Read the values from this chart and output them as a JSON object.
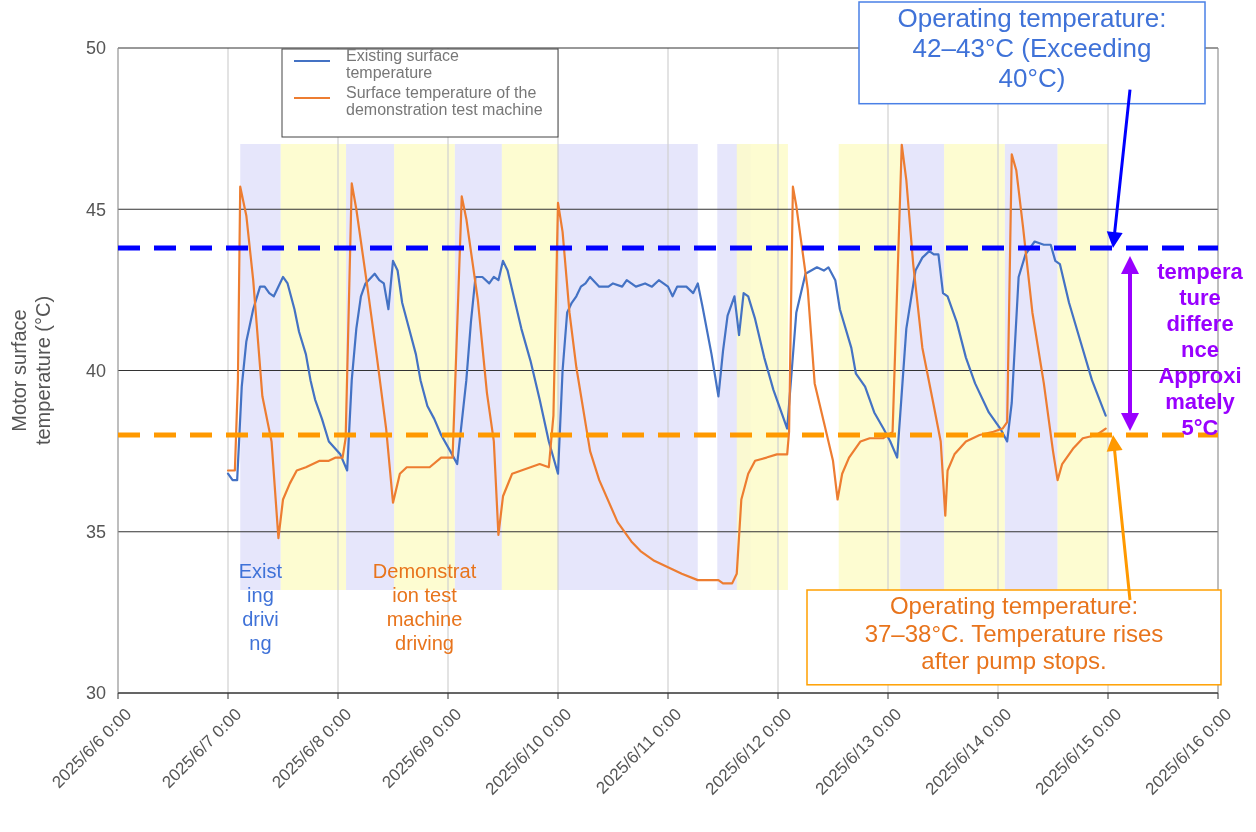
{
  "chart_data": {
    "type": "line",
    "ylabel": "Motor surface temperature (°C)",
    "xlim": [
      "2025-06-06T00:00",
      "2025-06-16T00:00"
    ],
    "xticks": [
      {
        "value": "2025-06-06T00:00",
        "label": "2025/6/6 0:00"
      },
      {
        "value": "2025-06-07T00:00",
        "label": "2025/6/7 0:00"
      },
      {
        "value": "2025-06-08T00:00",
        "label": "2025/6/8 0:00"
      },
      {
        "value": "2025-06-09T00:00",
        "label": "2025/6/9 0:00"
      },
      {
        "value": "2025-06-10T00:00",
        "label": "2025/6/10 0:00"
      },
      {
        "value": "2025-06-11T00:00",
        "label": "2025/6/11 0:00"
      },
      {
        "value": "2025-06-12T00:00",
        "label": "2025/6/12 0:00"
      },
      {
        "value": "2025-06-13T00:00",
        "label": "2025/6/13 0:00"
      },
      {
        "value": "2025-06-14T00:00",
        "label": "2025/6/14 0:00"
      },
      {
        "value": "2025-06-15T00:00",
        "label": "2025/6/15 0:00"
      },
      {
        "value": "2025-06-16T00:00",
        "label": "2025/6/16 0:00"
      }
    ],
    "ylim": [
      30,
      50
    ],
    "yticks": [
      30,
      35,
      40,
      45,
      50
    ],
    "grid": true,
    "legend": "top left",
    "series": [
      {
        "name": "Existing surface temperature",
        "color": "#4472c4",
        "x": [
          "2025-06-07T00:00",
          "2025-06-07T01:00",
          "2025-06-07T02:00",
          "2025-06-07T03:00",
          "2025-06-07T04:00",
          "2025-06-07T05:30",
          "2025-06-07T07:00",
          "2025-06-07T08:00",
          "2025-06-07T09:00",
          "2025-06-07T10:00",
          "2025-06-07T12:00",
          "2025-06-07T13:00",
          "2025-06-07T14:30",
          "2025-06-07T15:30",
          "2025-06-07T17:00",
          "2025-06-07T18:00",
          "2025-06-07T19:00",
          "2025-06-07T20:30",
          "2025-06-07T22:00",
          "2025-06-08T00:30",
          "2025-06-08T02:00",
          "2025-06-08T03:00",
          "2025-06-08T04:00",
          "2025-06-08T05:00",
          "2025-06-08T06:00",
          "2025-06-08T08:00",
          "2025-06-08T09:00",
          "2025-06-08T10:00",
          "2025-06-08T11:00",
          "2025-06-08T12:00",
          "2025-06-08T13:00",
          "2025-06-08T14:00",
          "2025-06-08T15:30",
          "2025-06-08T17:00",
          "2025-06-08T18:00",
          "2025-06-08T19:30",
          "2025-06-08T21:00",
          "2025-06-08T22:30",
          "2025-06-09T00:30",
          "2025-06-09T02:00",
          "2025-06-09T04:00",
          "2025-06-09T05:00",
          "2025-06-09T06:00",
          "2025-06-09T07:30",
          "2025-06-09T09:00",
          "2025-06-09T10:00",
          "2025-06-09T11:00",
          "2025-06-09T12:00",
          "2025-06-09T13:00",
          "2025-06-09T14:30",
          "2025-06-09T16:00",
          "2025-06-09T18:00",
          "2025-06-09T20:00",
          "2025-06-09T22:00",
          "2025-06-10T00:00",
          "2025-06-10T01:00",
          "2025-06-10T02:00",
          "2025-06-10T03:00",
          "2025-06-10T04:00",
          "2025-06-10T05:00",
          "2025-06-10T06:00",
          "2025-06-10T07:00",
          "2025-06-10T09:00",
          "2025-06-10T11:00",
          "2025-06-10T12:00",
          "2025-06-10T14:00",
          "2025-06-10T15:00",
          "2025-06-10T17:00",
          "2025-06-10T19:00",
          "2025-06-10T20:30",
          "2025-06-10T22:00",
          "2025-06-11T00:00",
          "2025-06-11T01:00",
          "2025-06-11T02:00",
          "2025-06-11T04:00",
          "2025-06-11T05:30",
          "2025-06-11T06:30",
          "2025-06-11T07:30",
          "2025-06-11T09:30",
          "2025-06-11T11:00",
          "2025-06-11T12:00",
          "2025-06-11T13:00",
          "2025-06-11T14:30",
          "2025-06-11T15:30",
          "2025-06-11T16:30",
          "2025-06-11T17:30",
          "2025-06-11T19:00",
          "2025-06-11T21:00",
          "2025-06-11T23:00",
          "2025-06-12T01:00",
          "2025-06-12T02:00",
          "2025-06-12T03:00",
          "2025-06-12T04:00",
          "2025-06-12T06:00",
          "2025-06-12T08:30",
          "2025-06-12T10:00",
          "2025-06-12T11:00",
          "2025-06-12T12:30",
          "2025-06-12T13:30",
          "2025-06-12T16:00",
          "2025-06-12T17:00",
          "2025-06-12T19:00",
          "2025-06-12T21:00",
          "2025-06-12T23:00",
          "2025-06-13T00:30",
          "2025-06-13T02:00",
          "2025-06-13T04:00",
          "2025-06-13T06:00",
          "2025-06-13T07:30",
          "2025-06-13T09:00",
          "2025-06-13T10:00",
          "2025-06-13T11:00",
          "2025-06-13T12:00",
          "2025-06-13T13:00",
          "2025-06-13T15:00",
          "2025-06-13T17:00",
          "2025-06-13T19:00",
          "2025-06-13T22:00",
          "2025-06-14T00:30",
          "2025-06-14T02:00",
          "2025-06-14T03:00",
          "2025-06-14T04:30",
          "2025-06-14T06:00",
          "2025-06-14T08:00",
          "2025-06-14T10:00",
          "2025-06-14T11:30",
          "2025-06-14T12:30",
          "2025-06-14T13:30",
          "2025-06-14T15:30",
          "2025-06-14T18:00",
          "2025-06-14T20:30",
          "2025-06-14T23:30"
        ],
        "values": [
          36.8,
          36.6,
          36.6,
          39.5,
          40.9,
          41.9,
          42.6,
          42.6,
          42.4,
          42.3,
          42.9,
          42.7,
          41.9,
          41.2,
          40.5,
          39.7,
          39.1,
          38.5,
          37.8,
          37.4,
          36.9,
          39.7,
          41.3,
          42.3,
          42.7,
          43.0,
          42.8,
          42.7,
          41.9,
          43.4,
          43.1,
          42.1,
          41.3,
          40.5,
          39.7,
          38.9,
          38.5,
          38.0,
          37.5,
          37.1,
          39.7,
          41.5,
          42.9,
          42.9,
          42.7,
          42.9,
          42.8,
          43.4,
          43.1,
          42.2,
          41.3,
          40.3,
          39.1,
          37.8,
          36.8,
          40.0,
          41.8,
          42.1,
          42.3,
          42.6,
          42.7,
          42.9,
          42.6,
          42.6,
          42.7,
          42.6,
          42.8,
          42.6,
          42.7,
          42.6,
          42.8,
          42.6,
          42.3,
          42.6,
          42.6,
          42.4,
          42.7,
          42.0,
          40.5,
          39.2,
          40.6,
          41.7,
          42.3,
          41.1,
          42.4,
          42.3,
          41.6,
          40.4,
          39.4,
          38.6,
          38.2,
          40.0,
          41.8,
          43.0,
          43.2,
          43.1,
          43.2,
          42.8,
          41.9,
          40.7,
          39.9,
          39.5,
          38.7,
          38.2,
          37.8,
          37.3,
          41.3,
          43.1,
          43.5,
          43.7,
          43.6,
          43.6,
          42.4,
          42.3,
          41.5,
          40.4,
          39.6,
          38.7,
          38.2,
          37.8,
          39.0,
          42.9,
          43.6,
          44.0,
          43.9,
          43.9,
          43.4,
          43.3,
          42.1,
          40.9,
          39.7,
          38.6
        ]
      },
      {
        "name": "Surface temperature of the demonstration test machine",
        "color": "#ed7d31",
        "x": [
          "2025-06-07T00:00",
          "2025-06-07T01:30",
          "2025-06-07T02:10",
          "2025-06-07T02:40",
          "2025-06-07T04:00",
          "2025-06-07T05:30",
          "2025-06-07T07:30",
          "2025-06-07T09:30",
          "2025-06-07T11:00",
          "2025-06-07T12:00",
          "2025-06-07T13:30",
          "2025-06-07T15:00",
          "2025-06-07T17:00",
          "2025-06-07T20:00",
          "2025-06-07T22:00",
          "2025-06-07T23:30",
          "2025-06-08T01:00",
          "2025-06-08T01:40",
          "2025-06-08T03:00",
          "2025-06-08T04:00",
          "2025-06-08T06:30",
          "2025-06-08T08:30",
          "2025-06-08T10:30",
          "2025-06-08T12:00",
          "2025-06-08T13:30",
          "2025-06-08T15:00",
          "2025-06-08T17:00",
          "2025-06-08T20:00",
          "2025-06-08T22:30",
          "2025-06-09T00:30",
          "2025-06-09T01:00",
          "2025-06-09T03:00",
          "2025-06-09T04:00",
          "2025-06-09T06:30",
          "2025-06-09T08:30",
          "2025-06-09T10:00",
          "2025-06-09T11:00",
          "2025-06-09T12:00",
          "2025-06-09T14:00",
          "2025-06-09T16:00",
          "2025-06-09T20:00",
          "2025-06-09T22:00",
          "2025-06-09T23:00",
          "2025-06-10T00:00",
          "2025-06-10T01:00",
          "2025-06-10T02:30",
          "2025-06-10T04:00",
          "2025-06-10T07:00",
          "2025-06-10T09:00",
          "2025-06-10T13:00",
          "2025-06-10T16:00",
          "2025-06-10T18:00",
          "2025-06-10T21:00",
          "2025-06-11T00:00",
          "2025-06-11T03:00",
          "2025-06-11T06:30",
          "2025-06-11T11:00",
          "2025-06-11T12:00",
          "2025-06-11T14:00",
          "2025-06-11T15:00",
          "2025-06-11T16:00",
          "2025-06-11T17:30",
          "2025-06-11T19:00",
          "2025-06-11T21:30",
          "2025-06-11T23:45",
          "2025-06-12T02:00",
          "2025-06-12T02:25",
          "2025-06-12T03:15",
          "2025-06-12T04:00",
          "2025-06-12T06:30",
          "2025-06-12T08:00",
          "2025-06-12T10:00",
          "2025-06-12T12:00",
          "2025-06-12T13:00",
          "2025-06-12T14:00",
          "2025-06-12T15:30",
          "2025-06-12T18:00",
          "2025-06-12T20:00",
          "2025-06-12T23:00",
          "2025-06-13T01:00",
          "2025-06-13T03:00",
          "2025-06-13T04:00",
          "2025-06-13T05:30",
          "2025-06-13T07:30",
          "2025-06-13T10:00",
          "2025-06-13T11:30",
          "2025-06-13T12:30",
          "2025-06-13T13:00",
          "2025-06-13T14:30",
          "2025-06-13T17:00",
          "2025-06-13T20:00",
          "2025-06-13T23:00",
          "2025-06-14T01:00",
          "2025-06-14T02:00",
          "2025-06-14T03:00",
          "2025-06-14T04:00",
          "2025-06-14T05:30",
          "2025-06-14T07:30",
          "2025-06-14T10:00",
          "2025-06-14T12:00",
          "2025-06-14T13:00",
          "2025-06-14T14:00",
          "2025-06-14T16:30",
          "2025-06-14T18:30",
          "2025-06-14T21:30",
          "2025-06-14T23:30"
        ],
        "values": [
          36.9,
          36.9,
          39.7,
          45.7,
          44.8,
          42.8,
          39.2,
          37.8,
          34.8,
          36.0,
          36.5,
          36.9,
          37.0,
          37.2,
          37.2,
          37.3,
          37.3,
          37.9,
          45.8,
          45.0,
          42.5,
          40.4,
          38.2,
          35.9,
          36.8,
          37.0,
          37.0,
          37.0,
          37.3,
          37.3,
          37.3,
          45.4,
          44.7,
          42.2,
          39.3,
          37.8,
          34.9,
          36.1,
          36.8,
          36.9,
          37.1,
          37.0,
          38.6,
          45.2,
          44.3,
          41.8,
          40.1,
          37.5,
          36.6,
          35.3,
          34.7,
          34.4,
          34.1,
          33.9,
          33.7,
          33.5,
          33.5,
          33.4,
          33.4,
          33.7,
          36.0,
          36.8,
          37.2,
          37.3,
          37.4,
          37.4,
          38.1,
          45.7,
          45.1,
          42.5,
          39.6,
          38.4,
          37.2,
          36.0,
          36.8,
          37.3,
          37.8,
          37.9,
          37.9,
          38.1,
          47.0,
          45.9,
          43.3,
          40.7,
          38.9,
          37.8,
          35.5,
          36.9,
          37.4,
          37.8,
          38.0,
          38.1,
          38.2,
          38.4,
          46.7,
          46.2,
          44.4,
          41.8,
          39.6,
          37.5,
          36.6,
          37.1,
          37.6,
          37.9,
          38.0,
          38.2
        ]
      }
    ],
    "bands": [
      {
        "axis": "x",
        "from": "2025-06-07T02:40",
        "to": "2025-06-07T11:30",
        "label": "Existing driving",
        "color": "#e2e2fa"
      },
      {
        "axis": "x",
        "from": "2025-06-07T11:30",
        "to": "2025-06-08T01:45",
        "color": "#fdfcc9"
      },
      {
        "axis": "x",
        "from": "2025-06-08T01:45",
        "to": "2025-06-08T12:15",
        "color": "#e2e2fa"
      },
      {
        "axis": "x",
        "from": "2025-06-08T12:15",
        "to": "2025-06-09T01:30",
        "label": "Demonstration test machine driving",
        "color": "#fdfcc9"
      },
      {
        "axis": "x",
        "from": "2025-06-09T01:30",
        "to": "2025-06-09T11:45",
        "color": "#e2e2fa"
      },
      {
        "axis": "x",
        "from": "2025-06-09T11:45",
        "to": "2025-06-10T00:00",
        "color": "#fdfcc9"
      },
      {
        "axis": "x",
        "from": "2025-06-10T00:00",
        "to": "2025-06-11T06:30",
        "color": "#e2e2fa"
      },
      {
        "axis": "x",
        "from": "2025-06-11T10:45",
        "to": "2025-06-11T18:00",
        "color": "#e2e2fa"
      },
      {
        "axis": "x",
        "from": "2025-06-11T15:00",
        "to": "2025-06-12T02:10",
        "color": "#fdfcc9"
      },
      {
        "axis": "x",
        "from": "2025-06-12T13:15",
        "to": "2025-06-13T02:40",
        "color": "#fdfcc9"
      },
      {
        "axis": "x",
        "from": "2025-06-13T02:40",
        "to": "2025-06-13T12:15",
        "color": "#e2e2fa"
      },
      {
        "axis": "x",
        "from": "2025-06-13T12:15",
        "to": "2025-06-14T01:30",
        "color": "#fdfcc9"
      },
      {
        "axis": "x",
        "from": "2025-06-14T01:30",
        "to": "2025-06-14T13:00",
        "color": "#e2e2fa"
      },
      {
        "axis": "x",
        "from": "2025-06-14T13:00",
        "to": "2025-06-15T00:00",
        "color": "#fdfcc9"
      }
    ],
    "ref_lines": [
      {
        "axis": "y",
        "value": 43.8,
        "color": "#0000ff",
        "line_style": "dashed"
      },
      {
        "axis": "y",
        "value": 38,
        "color": "#ff9900",
        "line_style": "dashed"
      }
    ],
    "annotations": [
      "Operating temperature: 42–43°C (Exceeding 40°C)",
      "Operating temperature: 37–38°C. Temperature rises after pump stops.",
      "temperature difference Approximately 5°C"
    ]
  }
}
